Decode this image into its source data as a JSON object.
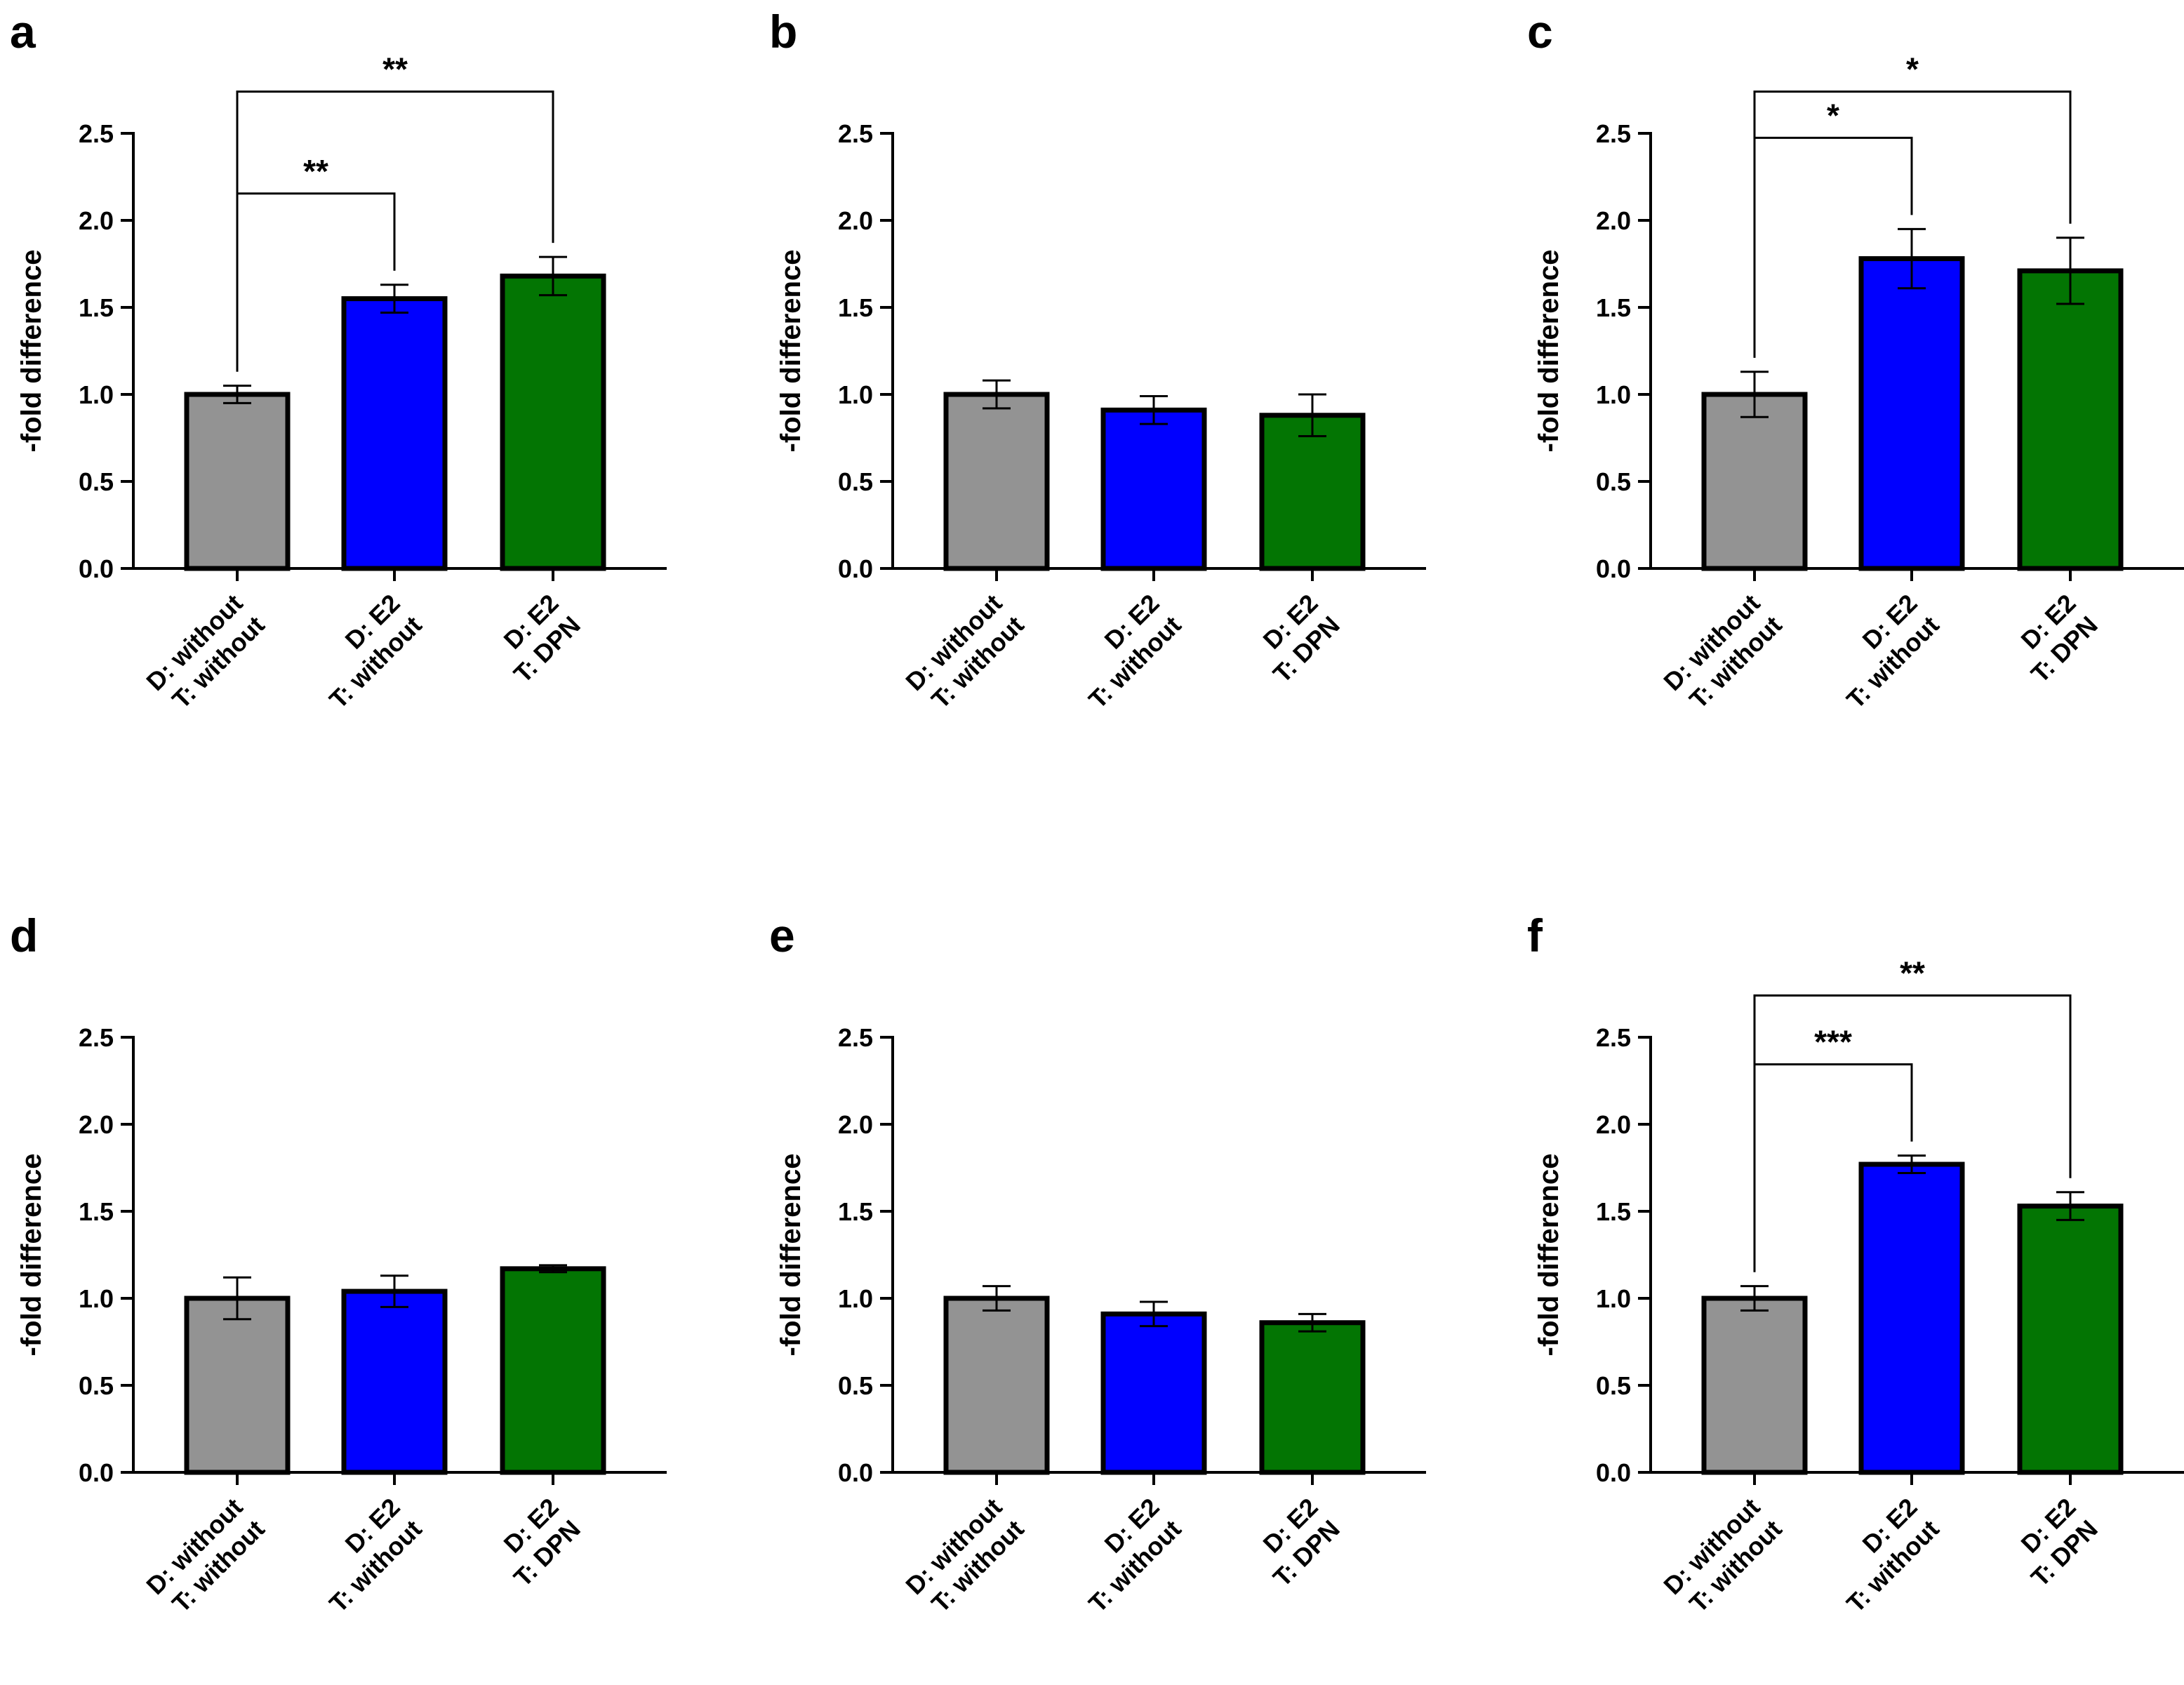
{
  "chart_data": [
    {
      "panel": "a",
      "type": "bar",
      "categories": [
        [
          "D: without",
          "T: without"
        ],
        [
          "D: E2",
          "T: without"
        ],
        [
          "D: E2",
          "T: DPN"
        ]
      ],
      "values": [
        1.0,
        1.55,
        1.68
      ],
      "errors": [
        0.05,
        0.08,
        0.11
      ],
      "ylabel": "-fold difference",
      "ylim": [
        0,
        2.5
      ],
      "yticks": [
        "0.0",
        "0.5",
        "1.0",
        "1.5",
        "2.0",
        "2.5"
      ],
      "brackets": [
        {
          "from": 0,
          "to": 1,
          "label": "**"
        },
        {
          "from": 0,
          "to": 2,
          "label": "**"
        }
      ]
    },
    {
      "panel": "b",
      "type": "bar",
      "categories": [
        [
          "D: without",
          "T: without"
        ],
        [
          "D: E2",
          "T: without"
        ],
        [
          "D: E2",
          "T: DPN"
        ]
      ],
      "values": [
        1.0,
        0.91,
        0.88
      ],
      "errors": [
        0.08,
        0.08,
        0.12
      ],
      "ylabel": "-fold difference",
      "ylim": [
        0,
        2.5
      ],
      "yticks": [
        "0.0",
        "0.5",
        "1.0",
        "1.5",
        "2.0",
        "2.5"
      ],
      "brackets": []
    },
    {
      "panel": "c",
      "type": "bar",
      "categories": [
        [
          "D: without",
          "T: without"
        ],
        [
          "D: E2",
          "T: without"
        ],
        [
          "D: E2",
          "T: DPN"
        ]
      ],
      "values": [
        1.0,
        1.78,
        1.71
      ],
      "errors": [
        0.13,
        0.17,
        0.19
      ],
      "ylabel": "-fold difference",
      "ylim": [
        0,
        2.5
      ],
      "yticks": [
        "0.0",
        "0.5",
        "1.0",
        "1.5",
        "2.0",
        "2.5"
      ],
      "brackets": [
        {
          "from": 0,
          "to": 1,
          "label": "*"
        },
        {
          "from": 0,
          "to": 2,
          "label": "*"
        }
      ]
    },
    {
      "panel": "d",
      "type": "bar",
      "categories": [
        [
          "D: without",
          "T: without"
        ],
        [
          "D: E2",
          "T: without"
        ],
        [
          "D: E2",
          "T: DPN"
        ]
      ],
      "values": [
        1.0,
        1.04,
        1.17
      ],
      "errors": [
        0.12,
        0.09,
        0.02
      ],
      "ylabel": "-fold difference",
      "ylim": [
        0,
        2.5
      ],
      "yticks": [
        "0.0",
        "0.5",
        "1.0",
        "1.5",
        "2.0",
        "2.5"
      ],
      "brackets": []
    },
    {
      "panel": "e",
      "type": "bar",
      "categories": [
        [
          "D: without",
          "T: without"
        ],
        [
          "D: E2",
          "T: without"
        ],
        [
          "D: E2",
          "T: DPN"
        ]
      ],
      "values": [
        1.0,
        0.91,
        0.86
      ],
      "errors": [
        0.07,
        0.07,
        0.05
      ],
      "ylabel": "-fold difference",
      "ylim": [
        0,
        2.5
      ],
      "yticks": [
        "0.0",
        "0.5",
        "1.0",
        "1.5",
        "2.0",
        "2.5"
      ],
      "brackets": []
    },
    {
      "panel": "f",
      "type": "bar",
      "categories": [
        [
          "D: without",
          "T: without"
        ],
        [
          "D: E2",
          "T: without"
        ],
        [
          "D: E2",
          "T: DPN"
        ]
      ],
      "values": [
        1.0,
        1.77,
        1.53
      ],
      "errors": [
        0.07,
        0.05,
        0.08
      ],
      "ylabel": "-fold difference",
      "ylim": [
        0,
        2.5
      ],
      "yticks": [
        "0.0",
        "0.5",
        "1.0",
        "1.5",
        "2.0",
        "2.5"
      ],
      "brackets": [
        {
          "from": 0,
          "to": 1,
          "label": "***"
        },
        {
          "from": 0,
          "to": 2,
          "label": "**"
        }
      ]
    }
  ],
  "colors": {
    "without": "#939393",
    "e2": "#0000ff",
    "dpn": "#037503",
    "stroke": "#000000"
  }
}
